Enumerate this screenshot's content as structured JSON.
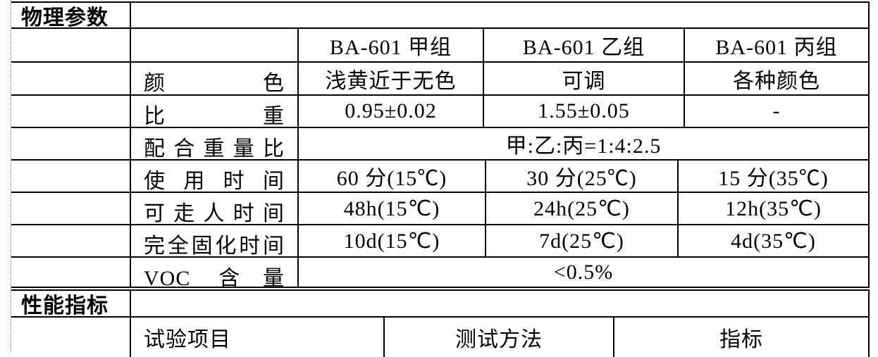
{
  "colors": {
    "background": "#ffffff",
    "text": "#000000",
    "grid_line": "#000000",
    "left_guide_line": "#909090"
  },
  "physical": {
    "title": "物理参数",
    "columns": [
      "BA-601 甲组",
      "BA-601 乙组",
      "BA-601 丙组"
    ],
    "rows": {
      "color": {
        "label": "颜色",
        "v1": "浅黄近于无色",
        "v2": "可调",
        "v3": "各种颜色"
      },
      "gravity": {
        "label": "比重",
        "v1": "0.95±0.02",
        "v2": "1.55±0.05",
        "v3": "-"
      },
      "mix_ratio": {
        "label": "配合重量比",
        "merged": "甲:乙:丙=1:4:2.5"
      },
      "pot_life": {
        "label": "使用时间",
        "v1": "60 分(15℃)",
        "v2": "30 分(25℃)",
        "v3": "15 分(35℃)"
      },
      "walkable": {
        "label": "可走人时间",
        "v1": "48h(15℃)",
        "v2": "24h(25℃)",
        "v3": "12h(35℃)"
      },
      "full_cure": {
        "label": "完全固化时间",
        "v1": "10d(15℃)",
        "v2": "7d(25℃)",
        "v3": "4d(35℃)"
      },
      "voc": {
        "label": "VOC 含量",
        "merged": "<0.5%"
      }
    }
  },
  "performance": {
    "title": "性能指标",
    "headers": [
      "试验项目",
      "测试方法",
      "指标"
    ]
  }
}
